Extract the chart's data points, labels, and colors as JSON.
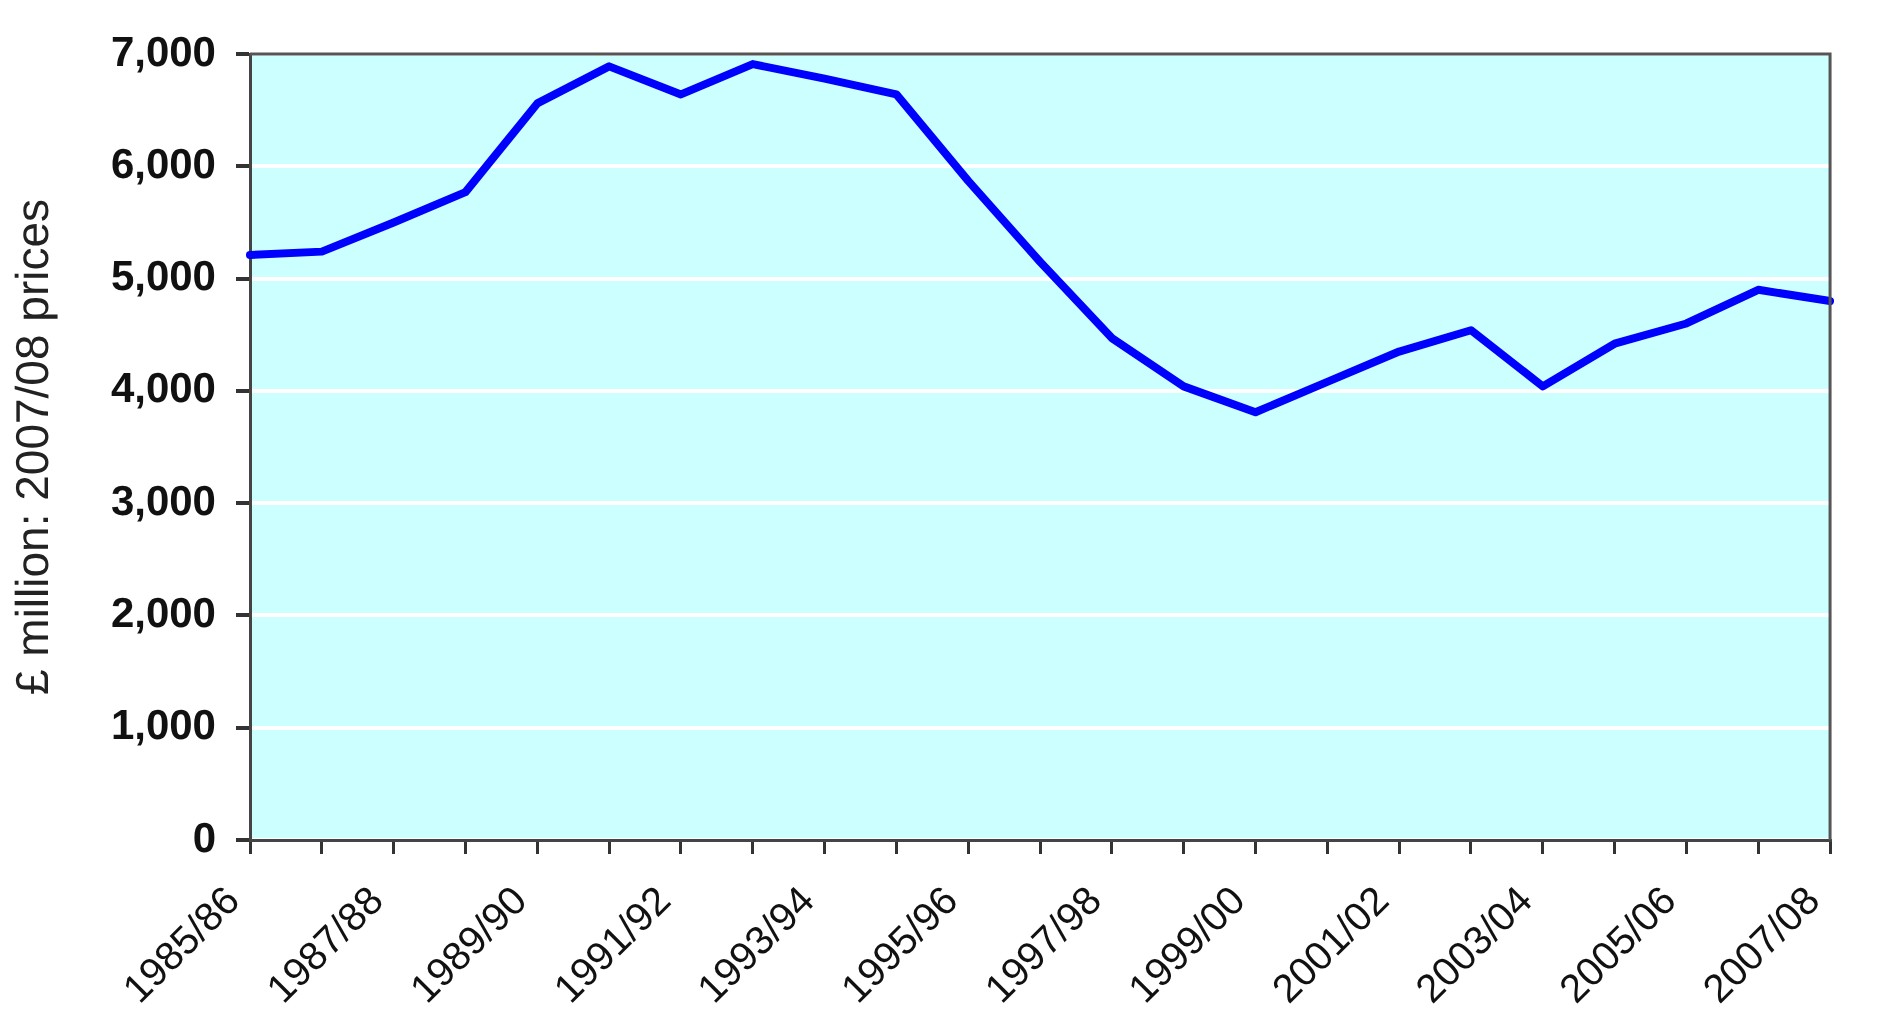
{
  "chart_data": {
    "type": "line",
    "ylabel": "£ million: 2007/08 prices",
    "categories": [
      "1985/86",
      null,
      "1987/88",
      null,
      "1989/90",
      null,
      "1991/92",
      null,
      "1993/94",
      null,
      "1995/96",
      null,
      "1997/98",
      null,
      "1999/00",
      null,
      "2001/02",
      null,
      "2003/04",
      null,
      "2005/06",
      null,
      "2007/08"
    ],
    "series": [
      {
        "color": "#0000ff",
        "values": [
          5210,
          5240,
          5500,
          5770,
          6560,
          6890,
          6640,
          6910,
          6780,
          6640,
          5870,
          5150,
          4470,
          4040,
          3810,
          4080,
          4350,
          4540,
          4040,
          4420,
          4600,
          4900,
          4800
        ]
      }
    ],
    "ylim": [
      0,
      7000
    ],
    "yticks": [
      0,
      {
        "value": 1000,
        "label": "1,000"
      },
      {
        "value": 2000,
        "label": "2,000"
      },
      {
        "value": 3000,
        "label": "3,000"
      },
      {
        "value": 4000,
        "label": "4,000"
      },
      {
        "value": 5000,
        "label": "5,000"
      },
      {
        "value": 6000,
        "label": "6,000"
      },
      {
        "value": 7000,
        "label": "7,000"
      }
    ],
    "grid": "y",
    "legend": false,
    "marker": "none",
    "line_style": "solid"
  }
}
